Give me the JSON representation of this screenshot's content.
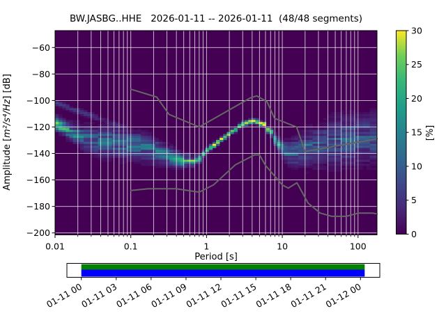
{
  "title": "BW.JASBG..HHE   2026-01-11 -- 2026-01-11  (48/48 segments)",
  "axes": {
    "xlabel": "Period [s]",
    "ylabel_prefix": "Amplitude [",
    "ylabel_math": "m²/s⁴/Hz",
    "ylabel_suffix": "] [dB]",
    "xlim": [
      0.01,
      178
    ],
    "ylim": [
      -201.3,
      -47.2
    ],
    "xticks": [
      0.01,
      0.1,
      1,
      10,
      100
    ],
    "xtick_labels": [
      "0.01",
      "0.1",
      "1",
      "10",
      "100"
    ],
    "yticks": [
      -60,
      -80,
      -100,
      -120,
      -140,
      -160,
      -180,
      -200
    ],
    "grid": true
  },
  "colorbar": {
    "label": "[%]",
    "min": 0,
    "max": 30,
    "ticks": [
      0,
      5,
      10,
      15,
      20,
      25,
      30
    ]
  },
  "timeline": {
    "tick_labels": [
      "01-11 00",
      "01-11 03",
      "01-11 06",
      "01-11 09",
      "01-11 12",
      "01-11 15",
      "01-11 18",
      "01-11 21",
      "01-12 00"
    ],
    "coverage_color": "#008000",
    "segments_color": "#0000ff"
  },
  "colors": {
    "figure_background": "#ffffff",
    "plot_background": "#440154",
    "grid": "rgba(255,255,255,0.78)",
    "noise_model": "#666666",
    "frame": "#000000",
    "viridis": [
      "#440154",
      "#482878",
      "#3e4989",
      "#31688e",
      "#26828e",
      "#1f9e89",
      "#35b779",
      "#6ece58",
      "#fde725"
    ]
  },
  "chart_data": {
    "type": "heatmap",
    "title": "BW.JASBG..HHE   2026-01-11 -- 2026-01-11  (48/48 segments)",
    "xlabel": "Period [s]",
    "ylabel": "Amplitude [m²/s⁴/Hz] [dB]",
    "colorbar_label": "[%]",
    "x_scale": "log",
    "xlim": [
      0.01,
      178
    ],
    "ylim_db": [
      -200,
      -60
    ],
    "probability_range_pct": [
      0,
      30
    ],
    "ppsd": {
      "comment": "ridge = [period_s, mode_dB, spread_sigma_dB, peak_probability_pct] of the PSD probability distribution",
      "ridge": [
        [
          0.01,
          -117.5,
          2.8,
          26
        ],
        [
          0.013,
          -120.5,
          3.2,
          17
        ],
        [
          0.017,
          -124.0,
          4.0,
          13
        ],
        [
          0.022,
          -127.0,
          5.0,
          11
        ],
        [
          0.03,
          -129.5,
          5.5,
          10
        ],
        [
          0.045,
          -131.0,
          6.0,
          10
        ],
        [
          0.065,
          -132.0,
          6.0,
          10
        ],
        [
          0.09,
          -133.0,
          6.0,
          10
        ],
        [
          0.13,
          -134.5,
          6.0,
          10
        ],
        [
          0.18,
          -137.0,
          5.5,
          11
        ],
        [
          0.27,
          -141.0,
          4.5,
          12
        ],
        [
          0.4,
          -144.0,
          3.5,
          14
        ],
        [
          0.55,
          -145.5,
          2.5,
          17
        ],
        [
          0.7,
          -146.0,
          2.0,
          20
        ],
        [
          0.85,
          -142.5,
          1.6,
          24
        ],
        [
          1.0,
          -138.5,
          1.3,
          27
        ],
        [
          1.3,
          -133.0,
          1.1,
          29
        ],
        [
          1.7,
          -128.0,
          1.0,
          30
        ],
        [
          2.2,
          -123.5,
          1.0,
          30
        ],
        [
          3.0,
          -118.5,
          1.0,
          30
        ],
        [
          4.0,
          -116.0,
          1.0,
          30
        ],
        [
          5.0,
          -116.5,
          1.0,
          30
        ],
        [
          6.0,
          -119.5,
          1.2,
          28
        ],
        [
          7.0,
          -124.0,
          1.6,
          23
        ],
        [
          8.5,
          -131.0,
          2.6,
          16
        ],
        [
          10,
          -136.5,
          3.5,
          12
        ],
        [
          12,
          -140.0,
          5.0,
          9
        ],
        [
          15,
          -139.0,
          6.5,
          8
        ],
        [
          20,
          -137.0,
          8.0,
          7
        ],
        [
          30,
          -134.0,
          9.0,
          7
        ],
        [
          45,
          -132.0,
          10.0,
          7
        ],
        [
          65,
          -131.0,
          10.5,
          7
        ],
        [
          90,
          -130.0,
          10.5,
          7
        ],
        [
          130,
          -128.5,
          10.5,
          7
        ],
        [
          185,
          -127.5,
          10.5,
          7
        ]
      ],
      "secondary_band": [
        [
          0.01,
          -101.5,
          1.3,
          4.0
        ],
        [
          0.016,
          -106.0,
          1.4,
          4.0
        ],
        [
          0.025,
          -110.0,
          1.5,
          4.0
        ],
        [
          0.04,
          -114.0,
          1.5,
          3.5
        ],
        [
          0.06,
          -118.0,
          1.5,
          3.0
        ],
        [
          0.085,
          -121.0,
          1.5,
          2.5
        ]
      ],
      "right_highlight": {
        "sigma": 1.3,
        "peak": 10,
        "points": [
          [
            11,
            -138.0
          ],
          [
            15,
            -136.0
          ],
          [
            20,
            -134.0
          ],
          [
            30,
            -131.5
          ],
          [
            45,
            -130.0
          ],
          [
            65,
            -129.0
          ],
          [
            90,
            -128.0
          ],
          [
            130,
            -127.0
          ],
          [
            185,
            -126.5
          ]
        ]
      }
    },
    "noise_models": {
      "NHNM": [
        [
          0.1,
          -91.5
        ],
        [
          0.22,
          -97.4
        ],
        [
          0.32,
          -110.5
        ],
        [
          0.8,
          -120.0
        ],
        [
          3.8,
          -98.0
        ],
        [
          4.6,
          -96.5
        ],
        [
          6.3,
          -101.0
        ],
        [
          7.9,
          -113.5
        ],
        [
          15.4,
          -120.0
        ],
        [
          20.0,
          -138.5
        ],
        [
          178.0,
          -129.0
        ]
      ],
      "NLNM": [
        [
          0.1,
          -168.0
        ],
        [
          0.17,
          -166.7
        ],
        [
          0.4,
          -166.7
        ],
        [
          0.8,
          -169.2
        ],
        [
          1.24,
          -163.7
        ],
        [
          2.4,
          -148.6
        ],
        [
          4.3,
          -141.1
        ],
        [
          5.0,
          -141.1
        ],
        [
          6.0,
          -149.0
        ],
        [
          10.0,
          -163.8
        ],
        [
          12.0,
          -166.2
        ],
        [
          15.6,
          -162.1
        ],
        [
          21.9,
          -177.5
        ],
        [
          31.6,
          -185.0
        ],
        [
          45.0,
          -187.5
        ],
        [
          70.0,
          -187.5
        ],
        [
          101.0,
          -185.0
        ],
        [
          154.0,
          -185.0
        ],
        [
          178.0,
          -185.6
        ]
      ]
    },
    "timeline_coverage": {
      "start_label": "01-11 00",
      "end_label": "01-12 00",
      "tick_labels": [
        "01-11 00",
        "01-11 03",
        "01-11 06",
        "01-11 09",
        "01-11 12",
        "01-11 15",
        "01-11 18",
        "01-11 21",
        "01-12 00"
      ],
      "coverage_fraction": [
        1.0
      ],
      "bars": [
        "data coverage (green)",
        "used segments (blue)"
      ]
    }
  }
}
